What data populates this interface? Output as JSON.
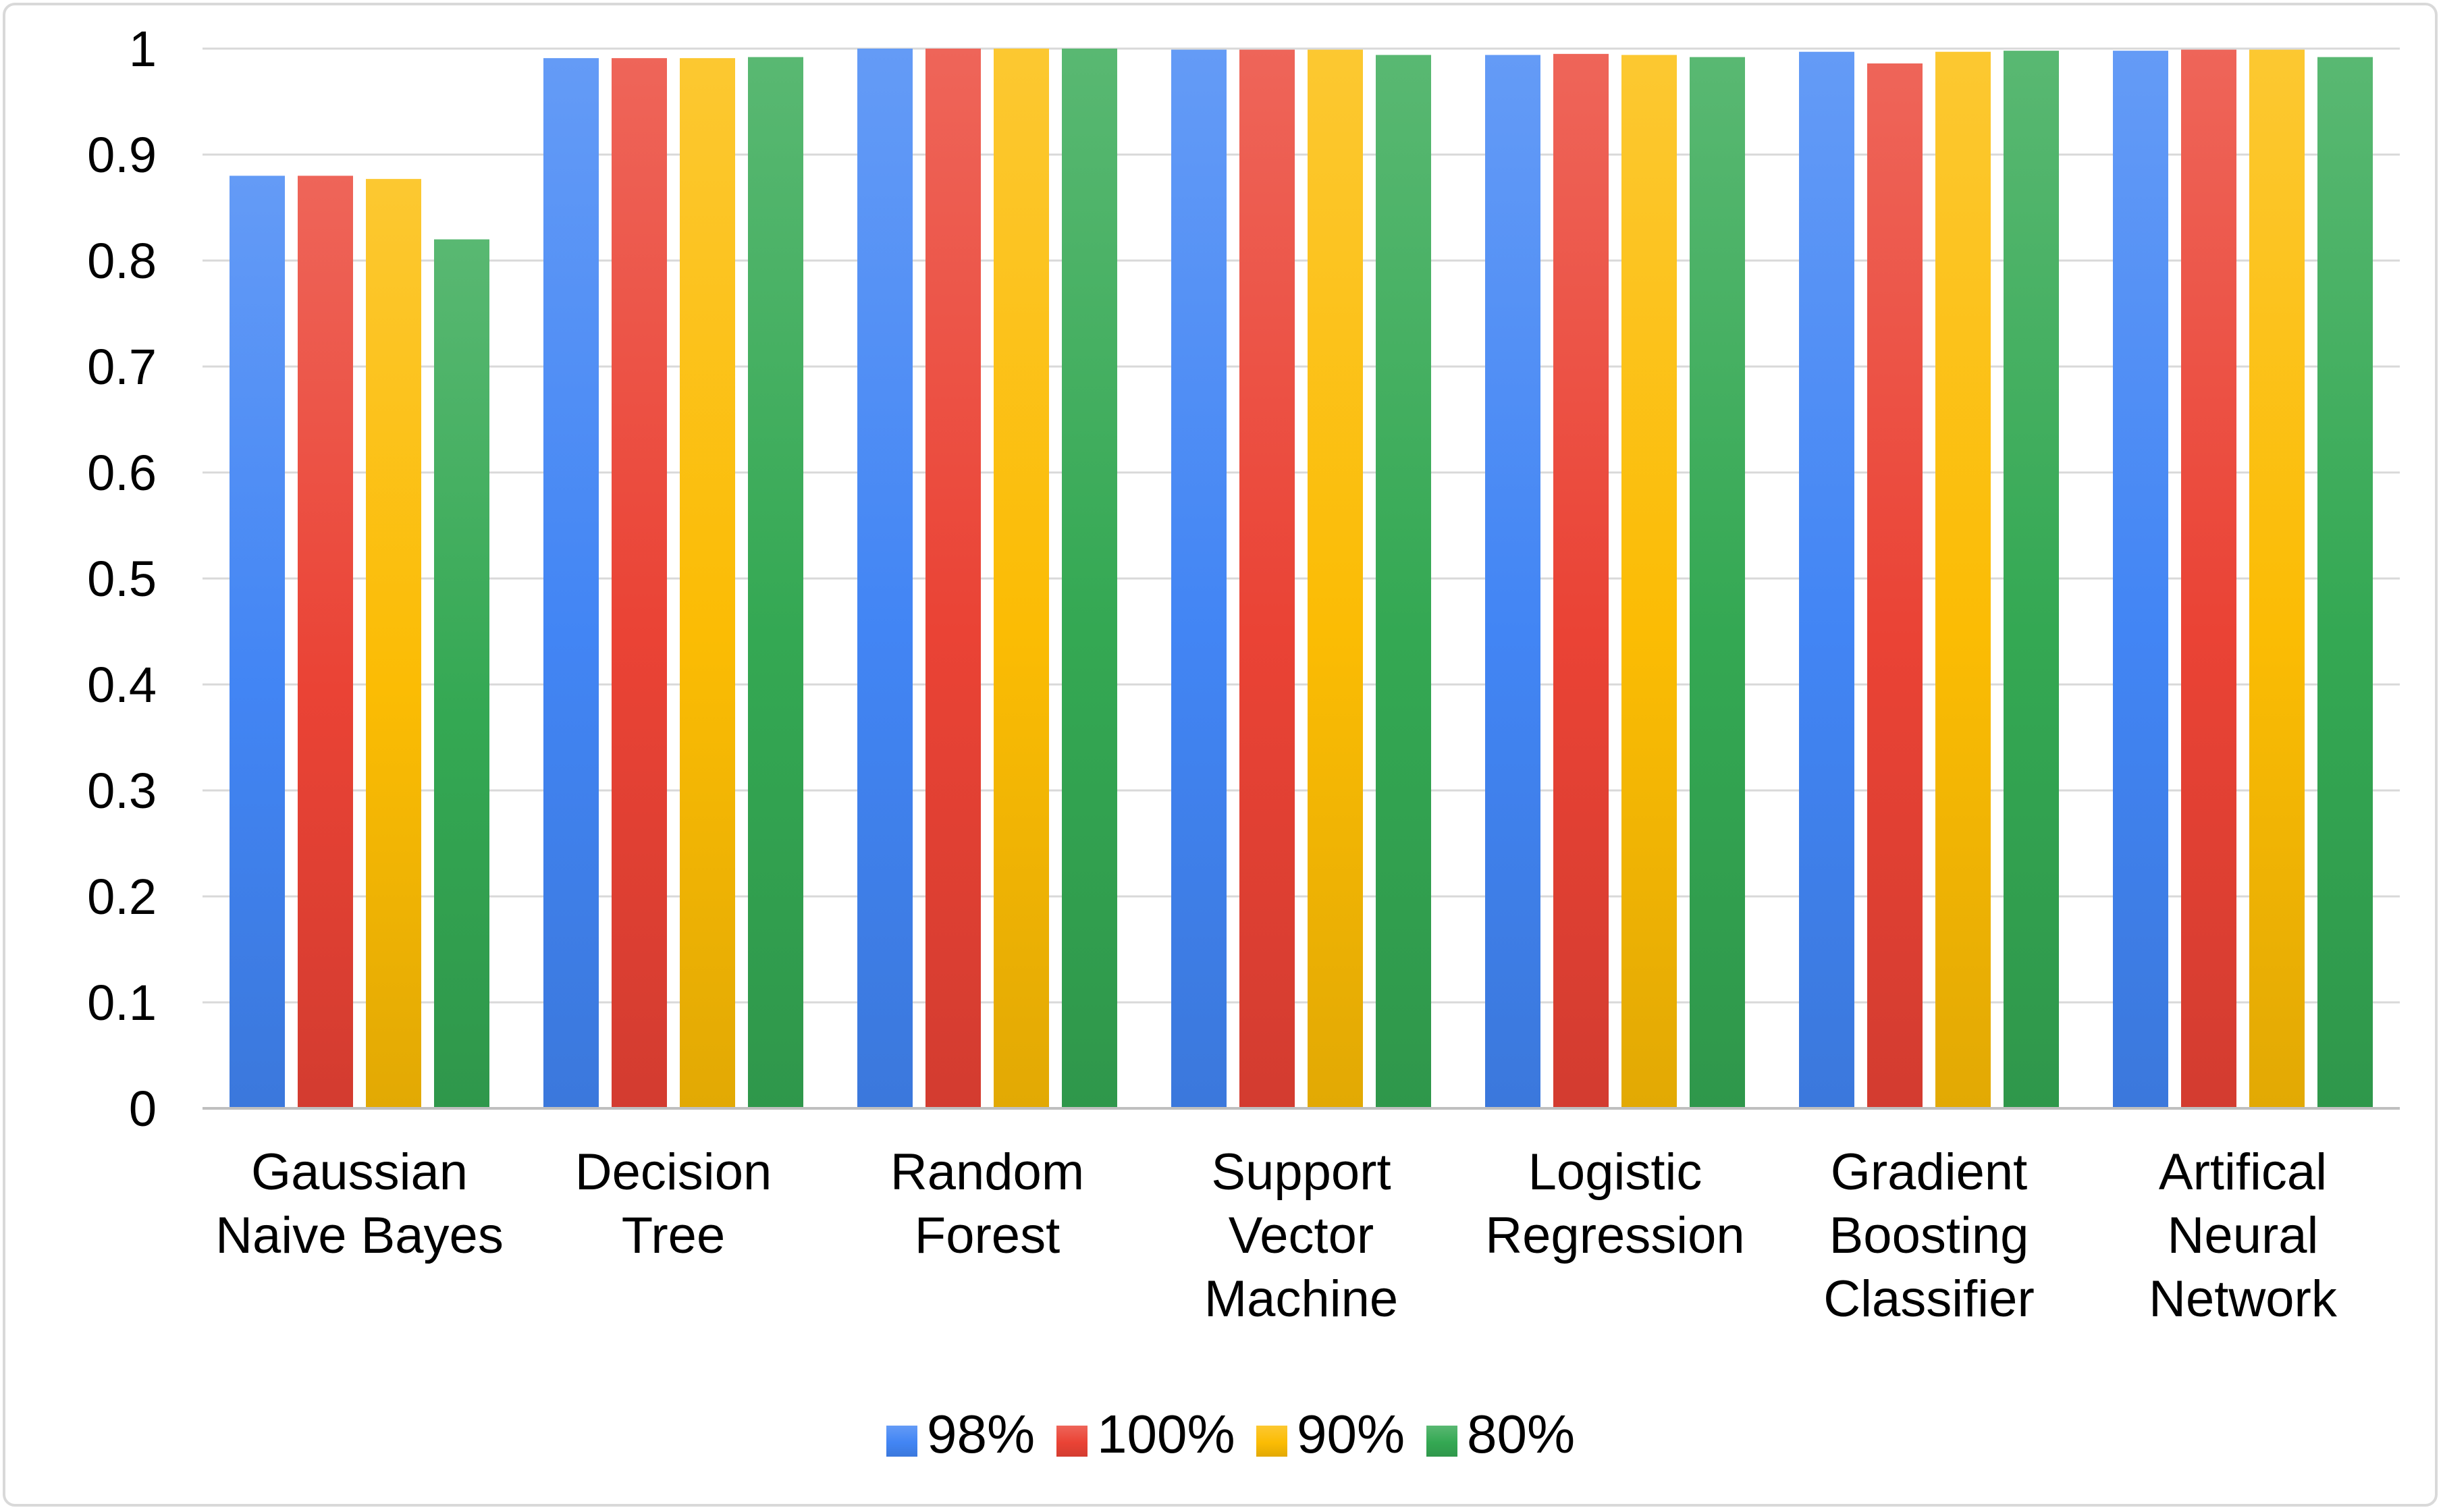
{
  "chart_data": {
    "type": "bar",
    "title": "",
    "xlabel": "",
    "ylabel": "",
    "ylim": [
      0,
      1
    ],
    "yticks": [
      "0",
      "0.1",
      "0.2",
      "0.3",
      "0.4",
      "0.5",
      "0.6",
      "0.7",
      "0.8",
      "0.9",
      "1"
    ],
    "grid": true,
    "legend_position": "bottom",
    "categories": [
      [
        "Gaussian",
        "Naive Bayes"
      ],
      [
        "Decision",
        "Tree"
      ],
      [
        "Random",
        "Forest"
      ],
      [
        "Support",
        "Vector",
        "Machine"
      ],
      [
        "Logistic",
        "Regression"
      ],
      [
        "Gradient",
        "Boosting",
        "Classifier"
      ],
      [
        "Artifical",
        "Neural",
        "Network"
      ]
    ],
    "series": [
      {
        "name": "98%",
        "color": "#4285f4",
        "values": [
          0.88,
          0.991,
          1.0,
          0.999,
          0.994,
          0.997,
          0.998
        ]
      },
      {
        "name": "100%",
        "color": "#ea4335",
        "values": [
          0.88,
          0.991,
          1.0,
          0.999,
          0.995,
          0.986,
          0.999
        ]
      },
      {
        "name": "90%",
        "color": "#fbbc04",
        "values": [
          0.877,
          0.991,
          1.0,
          0.999,
          0.994,
          0.997,
          0.999
        ]
      },
      {
        "name": "80%",
        "color": "#34a853",
        "values": [
          0.82,
          0.992,
          1.0,
          0.994,
          0.992,
          0.998,
          0.992
        ]
      }
    ]
  }
}
